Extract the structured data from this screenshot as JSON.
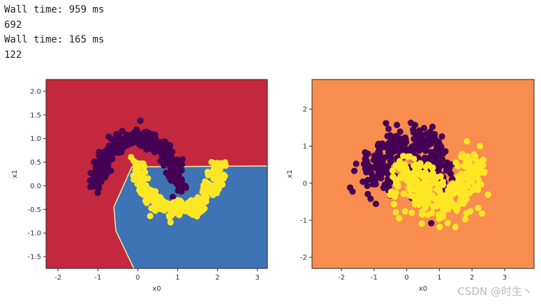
{
  "output_lines": [
    "Wall time: 959 ms",
    "692",
    "Wall time: 165 ms",
    "122"
  ],
  "watermark": "CSDN @时生丶",
  "colors": {
    "left_bg_class0": "#c3283f",
    "left_bg_class1": "#3e73b5",
    "right_bg": "#f98d4f",
    "class0_points": "#440154",
    "class1_points": "#fde725",
    "boundary": "#f5f0a0"
  },
  "chart_data": [
    {
      "type": "scatter",
      "title": "",
      "xlabel": "x0",
      "ylabel": "x1",
      "xlim": [
        -2.3,
        3.25
      ],
      "ylim": [
        -1.75,
        2.25
      ],
      "xticks": [
        "-2",
        "-1",
        "0",
        "1",
        "2",
        "3"
      ],
      "yticks": [
        "-1.5",
        "-1.0",
        "-0.5",
        "0.0",
        "0.5",
        "1.0",
        "1.5",
        "2.0"
      ],
      "background": "decision regions (two classes)",
      "decision_boundary": [
        [
          -0.1,
          -1.75
        ],
        [
          -0.55,
          -0.95
        ],
        [
          -0.6,
          -0.45
        ],
        [
          -0.15,
          0.4
        ],
        [
          3.25,
          0.42
        ]
      ],
      "series": [
        {
          "class": 0,
          "shape": "upper moon",
          "center": [
            0.0,
            0.0
          ],
          "radius": 1.0,
          "angle_range": [
            0,
            180
          ],
          "noise": 0.1,
          "count": 300
        },
        {
          "class": 1,
          "shape": "lower moon",
          "center": [
            1.0,
            0.5
          ],
          "radius": 1.0,
          "angle_range": [
            180,
            360
          ],
          "noise": 0.1,
          "count": 300
        }
      ]
    },
    {
      "type": "scatter",
      "title": "",
      "xlabel": "x0",
      "ylabel": "x1",
      "xlim": [
        -2.9,
        3.9
      ],
      "ylim": [
        -2.3,
        2.8
      ],
      "xticks": [
        "-2",
        "-1",
        "0",
        "1",
        "2",
        "3"
      ],
      "yticks": [
        "-2",
        "-1",
        "0",
        "1",
        "2"
      ],
      "background": "single decision region",
      "series": [
        {
          "class": 0,
          "shape": "upper moon",
          "center": [
            0.0,
            0.0
          ],
          "radius": 1.0,
          "angle_range": [
            0,
            180
          ],
          "noise": 0.3,
          "count": 300
        },
        {
          "class": 1,
          "shape": "lower moon",
          "center": [
            1.0,
            0.5
          ],
          "radius": 1.0,
          "angle_range": [
            180,
            360
          ],
          "noise": 0.3,
          "count": 300
        }
      ]
    }
  ]
}
